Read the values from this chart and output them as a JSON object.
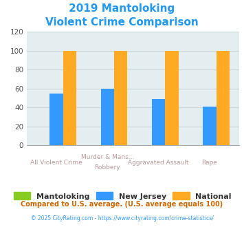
{
  "title_line1": "2019 Mantoloking",
  "title_line2": "Violent Crime Comparison",
  "title_color": "#2299ee",
  "cat_labels_line1": [
    "All Violent Crime",
    "Murder & Mans...",
    "Aggravated Assault",
    "Rape"
  ],
  "cat_labels_line2": [
    "",
    "Robbery",
    "",
    ""
  ],
  "mantoloking": [
    0,
    0,
    0,
    0
  ],
  "new_jersey": [
    55,
    60,
    49,
    41
  ],
  "national": [
    100,
    100,
    100,
    100
  ],
  "color_mantoloking": "#88cc22",
  "color_nj": "#3399ff",
  "color_national": "#ffaa22",
  "ylim": [
    0,
    120
  ],
  "yticks": [
    0,
    20,
    40,
    60,
    80,
    100,
    120
  ],
  "grid_color": "#c8d8d8",
  "bg_color": "#e4eef0",
  "legend_labels": [
    "Mantoloking",
    "New Jersey",
    "National"
  ],
  "footnote1": "Compared to U.S. average. (U.S. average equals 100)",
  "footnote2": "© 2025 CityRating.com - https://www.cityrating.com/crime-statistics/",
  "footnote1_color": "#cc6600",
  "footnote2_color": "#3399ff",
  "xlabel_color": "#bb9999",
  "bar_width": 0.26
}
